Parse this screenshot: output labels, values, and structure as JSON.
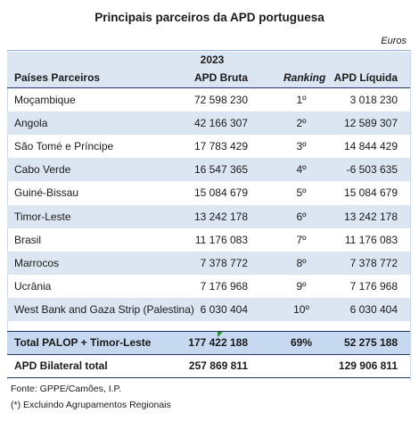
{
  "title": "Principais parceiros da APD portuguesa",
  "unit": "Euros",
  "year": "2023",
  "headers": {
    "name": "Países Parceiros",
    "bruta": "APD Bruta",
    "ranking": "Ranking",
    "liquida": "APD Líquida"
  },
  "rows": [
    {
      "name": "Moçambique",
      "bruta": "72 598 230",
      "rank": "1º",
      "liquida": "3 018 230"
    },
    {
      "name": "Angola",
      "bruta": "42 166 307",
      "rank": "2º",
      "liquida": "12 589 307"
    },
    {
      "name": "São Tomé e Príncipe",
      "bruta": "17 783 429",
      "rank": "3º",
      "liquida": "14 844 429"
    },
    {
      "name": "Cabo Verde",
      "bruta": "16 547 365",
      "rank": "4º",
      "liquida": "-6 503 635"
    },
    {
      "name": "Guiné-Bissau",
      "bruta": "15 084 679",
      "rank": "5º",
      "liquida": "15 084 679"
    },
    {
      "name": "Timor-Leste",
      "bruta": "13 242 178",
      "rank": "6º",
      "liquida": "13 242 178"
    },
    {
      "name": "Brasil",
      "bruta": "11 176 083",
      "rank": "7º",
      "liquida": "11 176 083"
    },
    {
      "name": "Marrocos",
      "bruta": "7 378 772",
      "rank": "8º",
      "liquida": "7 378 772"
    },
    {
      "name": "Ucrânia",
      "bruta": "7 176 968",
      "rank": "9º",
      "liquida": "7 176 968"
    },
    {
      "name": "West Bank and Gaza Strip (Palestina)",
      "bruta": "6 030 404",
      "rank": "10º",
      "liquida": "6 030 404"
    }
  ],
  "total_palop": {
    "name": "Total PALOP + Timor-Leste",
    "bruta": "177 422 188",
    "rank": "69%",
    "liquida": "52 275 188"
  },
  "bilateral": {
    "name": "APD Bilateral total",
    "bruta": "257 869 811",
    "liquida": "129 906 811"
  },
  "footnotes": {
    "source": "Fonte: GPPE/Camões, I.P.",
    "note": "(*) Excluindo Agrupamentos Regionais"
  },
  "colors": {
    "band": "#dce6f2",
    "total_band": "#c6d9f0",
    "rule": "#1f3864",
    "marker": "#2e8b3a"
  }
}
